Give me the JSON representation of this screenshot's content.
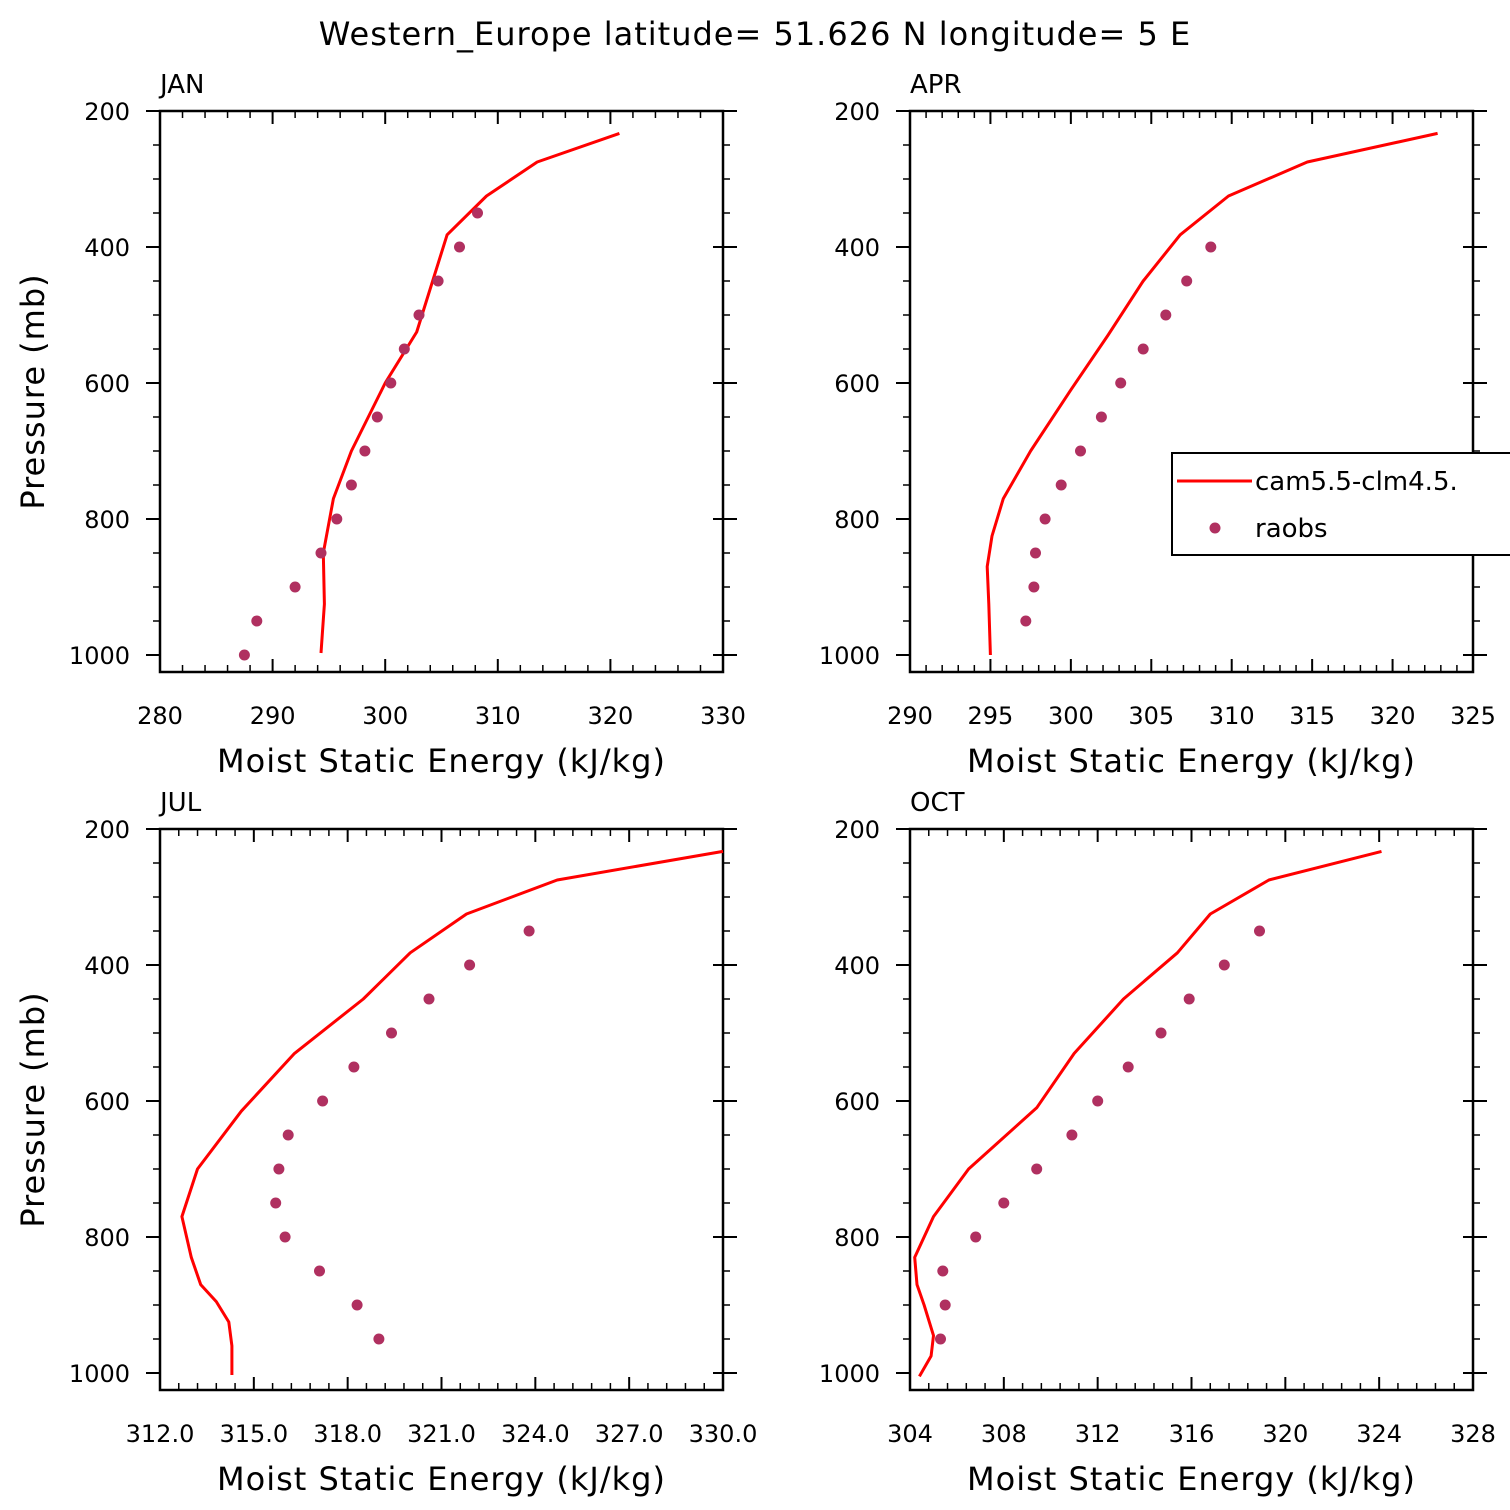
{
  "figure_title": "Western_Europe  latitude= 51.626 N longitude= 5 E",
  "legend": {
    "model_label": "cam5.5-clm4.5.",
    "obs_label": "raobs"
  },
  "colors": {
    "model_line": "#ff0000",
    "obs_marker": "#b03060",
    "axes": "#000000",
    "background": "#ffffff"
  },
  "chart_data": [
    {
      "type": "line",
      "panel": "JAN",
      "title": "JAN",
      "xlabel": "Moist Static Energy (kJ/kg)",
      "ylabel": "Pressure (mb)",
      "xlim": [
        280,
        330
      ],
      "ylim": [
        1025,
        200
      ],
      "y_inverted": true,
      "xticks": [
        280,
        290,
        300,
        310,
        320,
        330
      ],
      "xtick_labels": [
        "280",
        "290",
        "300",
        "310",
        "320",
        "330"
      ],
      "yticks": [
        1000,
        800,
        600,
        400,
        200
      ],
      "ytick_labels": [
        "1000",
        "800",
        "600",
        "400",
        "200"
      ],
      "series": [
        {
          "name": "cam5.5-clm4.5.",
          "kind": "line",
          "x": [
            294.3,
            294.6,
            294.5,
            295.4,
            297.0,
            300.0,
            302.8,
            305.5,
            309.0,
            313.5,
            320.8
          ],
          "y": [
            997,
            925,
            850,
            770,
            700,
            600,
            525,
            382,
            325,
            275,
            233
          ]
        },
        {
          "name": "raobs",
          "kind": "scatter",
          "x": [
            287.5,
            288.6,
            292.0,
            294.3,
            295.7,
            297.0,
            298.2,
            299.3,
            300.5,
            301.7,
            303.0,
            304.7,
            306.6,
            308.2
          ],
          "y": [
            1000,
            950,
            900,
            850,
            800,
            750,
            700,
            650,
            600,
            550,
            500,
            450,
            400,
            350
          ]
        }
      ]
    },
    {
      "type": "line",
      "panel": "APR",
      "title": "APR",
      "xlabel": "Moist Static Energy (kJ/kg)",
      "ylabel": "",
      "xlim": [
        290,
        325
      ],
      "ylim": [
        1025,
        200
      ],
      "y_inverted": true,
      "xticks": [
        290,
        295,
        300,
        305,
        310,
        315,
        320,
        325
      ],
      "xtick_labels": [
        "290",
        "295",
        "300",
        "305",
        "310",
        "315",
        "320",
        "325"
      ],
      "yticks": [
        1000,
        800,
        600,
        400,
        200
      ],
      "ytick_labels": [
        "1000",
        "800",
        "600",
        "400",
        "200"
      ],
      "series": [
        {
          "name": "cam5.5-clm4.5.",
          "kind": "line",
          "x": [
            295.0,
            294.9,
            294.8,
            295.1,
            295.8,
            297.5,
            300.0,
            302.3,
            304.5,
            306.8,
            309.8,
            314.7,
            322.8
          ],
          "y": [
            1000,
            925,
            870,
            825,
            770,
            700,
            610,
            530,
            450,
            382,
            325,
            275,
            233
          ]
        },
        {
          "name": "raobs",
          "kind": "scatter",
          "x": [
            297.2,
            297.7,
            297.8,
            298.4,
            299.4,
            300.6,
            301.9,
            303.1,
            304.5,
            305.9,
            307.2,
            308.7
          ],
          "y": [
            950,
            900,
            850,
            800,
            750,
            700,
            650,
            600,
            550,
            500,
            450,
            400
          ]
        }
      ]
    },
    {
      "type": "line",
      "panel": "JUL",
      "title": "JUL",
      "xlabel": "Moist Static Energy (kJ/kg)",
      "ylabel": "Pressure (mb)",
      "xlim": [
        312.0,
        330.0
      ],
      "ylim": [
        1025,
        200
      ],
      "y_inverted": true,
      "xticks": [
        312,
        315,
        318,
        321,
        324,
        327,
        330
      ],
      "xtick_labels": [
        "312.0",
        "315.0",
        "318.0",
        "321.0",
        "324.0",
        "327.0",
        "330.0"
      ],
      "yticks": [
        1000,
        800,
        600,
        400,
        200
      ],
      "ytick_labels": [
        "1000",
        "800",
        "600",
        "400",
        "200"
      ],
      "series": [
        {
          "name": "cam5.5-clm4.5.",
          "kind": "line",
          "x": [
            314.3,
            314.3,
            314.2,
            313.8,
            313.3,
            313.0,
            312.7,
            313.2,
            314.6,
            316.3,
            318.5,
            320.0,
            321.8,
            324.7,
            330.0
          ],
          "y": [
            1003,
            960,
            925,
            895,
            870,
            830,
            770,
            700,
            615,
            530,
            450,
            382,
            325,
            275,
            233
          ]
        },
        {
          "name": "raobs",
          "kind": "scatter",
          "x": [
            319.0,
            318.3,
            317.1,
            316.0,
            315.7,
            315.8,
            316.1,
            317.2,
            318.2,
            319.4,
            320.6,
            321.9,
            323.8
          ],
          "y": [
            950,
            900,
            850,
            800,
            750,
            700,
            650,
            600,
            550,
            500,
            450,
            400,
            350
          ]
        }
      ]
    },
    {
      "type": "line",
      "panel": "OCT",
      "title": "OCT",
      "xlabel": "Moist Static Energy (kJ/kg)",
      "ylabel": "",
      "xlim": [
        304,
        328
      ],
      "ylim": [
        1025,
        200
      ],
      "y_inverted": true,
      "xticks": [
        304,
        308,
        312,
        316,
        320,
        324,
        328
      ],
      "xtick_labels": [
        "304",
        "308",
        "312",
        "316",
        "320",
        "324",
        "328"
      ],
      "yticks": [
        1000,
        800,
        600,
        400,
        200
      ],
      "ytick_labels": [
        "1000",
        "800",
        "600",
        "400",
        "200"
      ],
      "series": [
        {
          "name": "cam5.5-clm4.5.",
          "kind": "line",
          "x": [
            304.4,
            304.9,
            305.0,
            304.6,
            304.3,
            304.2,
            305.0,
            306.5,
            309.4,
            311.0,
            313.1,
            315.4,
            316.8,
            319.3,
            324.1
          ],
          "y": [
            1005,
            975,
            945,
            900,
            870,
            830,
            770,
            700,
            610,
            530,
            450,
            382,
            325,
            275,
            233
          ]
        },
        {
          "name": "raobs",
          "kind": "scatter",
          "x": [
            305.3,
            305.5,
            305.4,
            306.8,
            308.0,
            309.4,
            310.9,
            312.0,
            313.3,
            314.7,
            315.9,
            317.4,
            318.9
          ],
          "y": [
            950,
            900,
            850,
            800,
            750,
            700,
            650,
            600,
            550,
            500,
            450,
            400,
            350
          ]
        }
      ]
    }
  ]
}
